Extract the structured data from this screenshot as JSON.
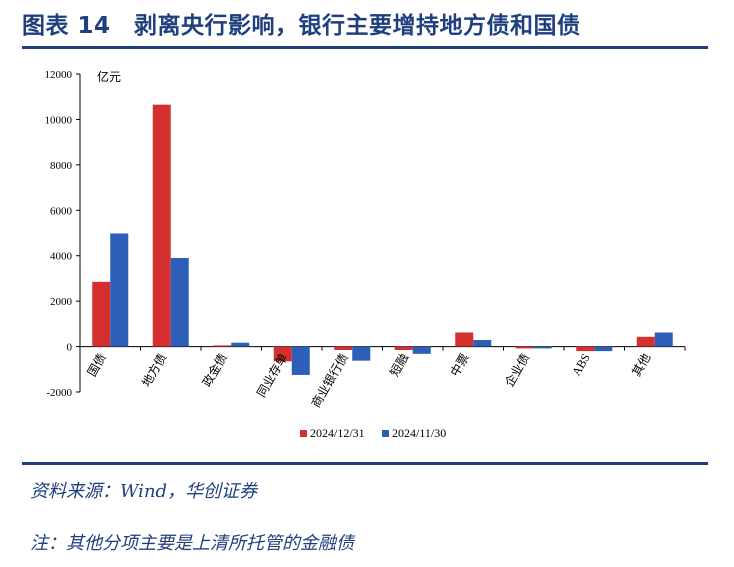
{
  "figure": {
    "title": "图表 14　剥离央行影响，银行主要增持地方债和国债",
    "source": "资料来源：Wind，华创证券",
    "note": "注：其他分项主要是上清所托管的金融债"
  },
  "chart_data": {
    "type": "bar",
    "unit_label": "亿元",
    "categories": [
      "国债",
      "地方债",
      "政金债",
      "同业存单",
      "商业银行债",
      "短融",
      "中票",
      "企业债",
      "ABS",
      "其他"
    ],
    "series": [
      {
        "name": "2024/12/31",
        "color": "#d62f2f",
        "values": [
          2850,
          10650,
          50,
          -650,
          -150,
          -150,
          620,
          -80,
          -200,
          430
        ]
      },
      {
        "name": "2024/11/30",
        "color": "#2e5fb8",
        "values": [
          4980,
          3900,
          170,
          -1250,
          -620,
          -320,
          290,
          -80,
          -200,
          620
        ]
      }
    ],
    "ylim": [
      -2000,
      12000
    ],
    "yticks": [
      -2000,
      0,
      2000,
      4000,
      6000,
      8000,
      10000,
      12000
    ],
    "ytick_labels": [
      "-2000",
      "0",
      "2000",
      "4000",
      "6000",
      "8000",
      "10000",
      "12000"
    ],
    "legend_position": "bottom",
    "grid": false
  }
}
